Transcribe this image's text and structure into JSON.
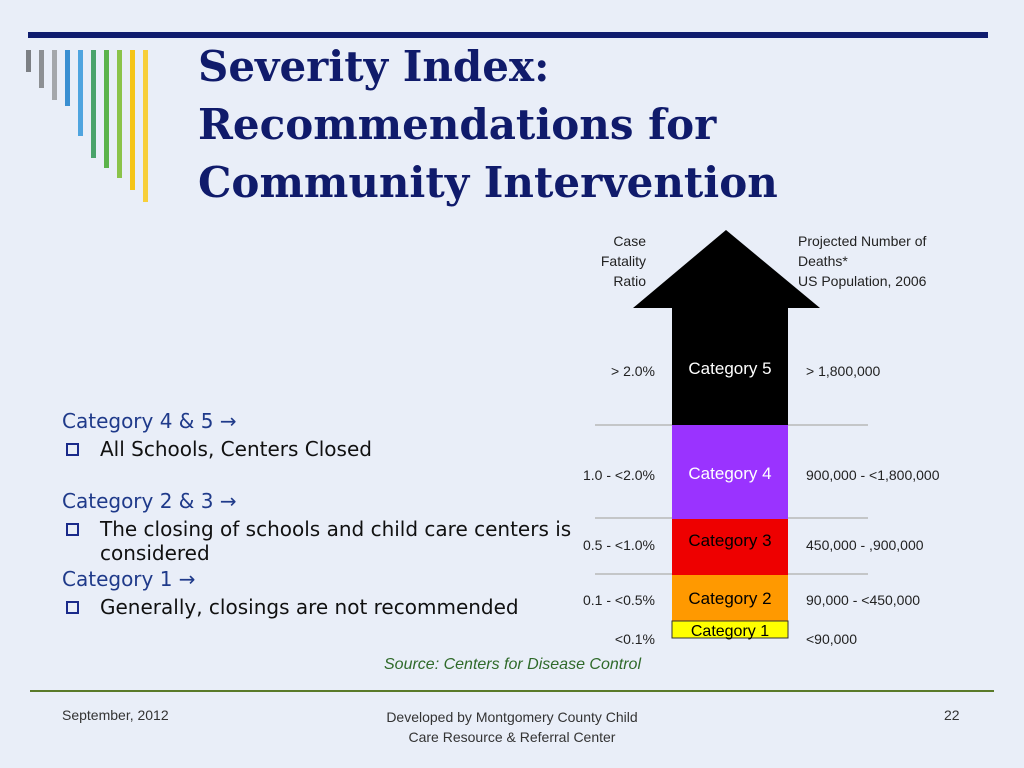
{
  "slide": {
    "title": "Severity Index: Recommendations for Community Intervention",
    "stripe_colors": [
      "#7c7f84",
      "#8d9094",
      "#a4a7ab",
      "#3a8fd1",
      "#4fa4df",
      "#4aa36a",
      "#5bb34b",
      "#8bc34a",
      "#f5c518",
      "#f7cf3a"
    ]
  },
  "bullets": {
    "group1_header": "Category 4 & 5 →",
    "group1_item": "All Schools, Centers Closed",
    "group2_header": "Category 2 & 3 →",
    "group2_item": "The closing of schools and child care centers is considered",
    "group3_header": "Category 1 →",
    "group3_item": "Generally, closings are not recommended"
  },
  "chart": {
    "left_header": [
      "Case",
      "Fatality",
      "Ratio"
    ],
    "right_header": [
      "Projected Number of",
      "Deaths*",
      "US Population, 2006"
    ],
    "categories": [
      {
        "label": "Category 5",
        "cfr": "> 2.0%",
        "deaths": "> 1,800,000",
        "color": "#000000",
        "text_color": "#ffffff"
      },
      {
        "label": "Category 4",
        "cfr": "1.0 - <2.0%",
        "deaths": "900,000 - <1,800,000",
        "color": "#9a33ff",
        "text_color": "#ffffff"
      },
      {
        "label": "Category 3",
        "cfr": "0.5 - <1.0%",
        "deaths": "450,000 - ,900,000",
        "color": "#ee0000",
        "text_color": "#000000"
      },
      {
        "label": "Category 2",
        "cfr": "0.1 - <0.5%",
        "deaths": "90,000 - <450,000",
        "color": "#ff9900",
        "text_color": "#000000"
      },
      {
        "label": "Category 1",
        "cfr": "<0.1%",
        "deaths": "<90,000",
        "color": "#ffff00",
        "text_color": "#000000"
      }
    ],
    "source": "Source: Centers for Disease Control"
  },
  "footer": {
    "date": "September, 2012",
    "credit_line1": "Developed by Montgomery County Child",
    "credit_line2": "Care Resource & Referral Center",
    "page_number": "22"
  }
}
